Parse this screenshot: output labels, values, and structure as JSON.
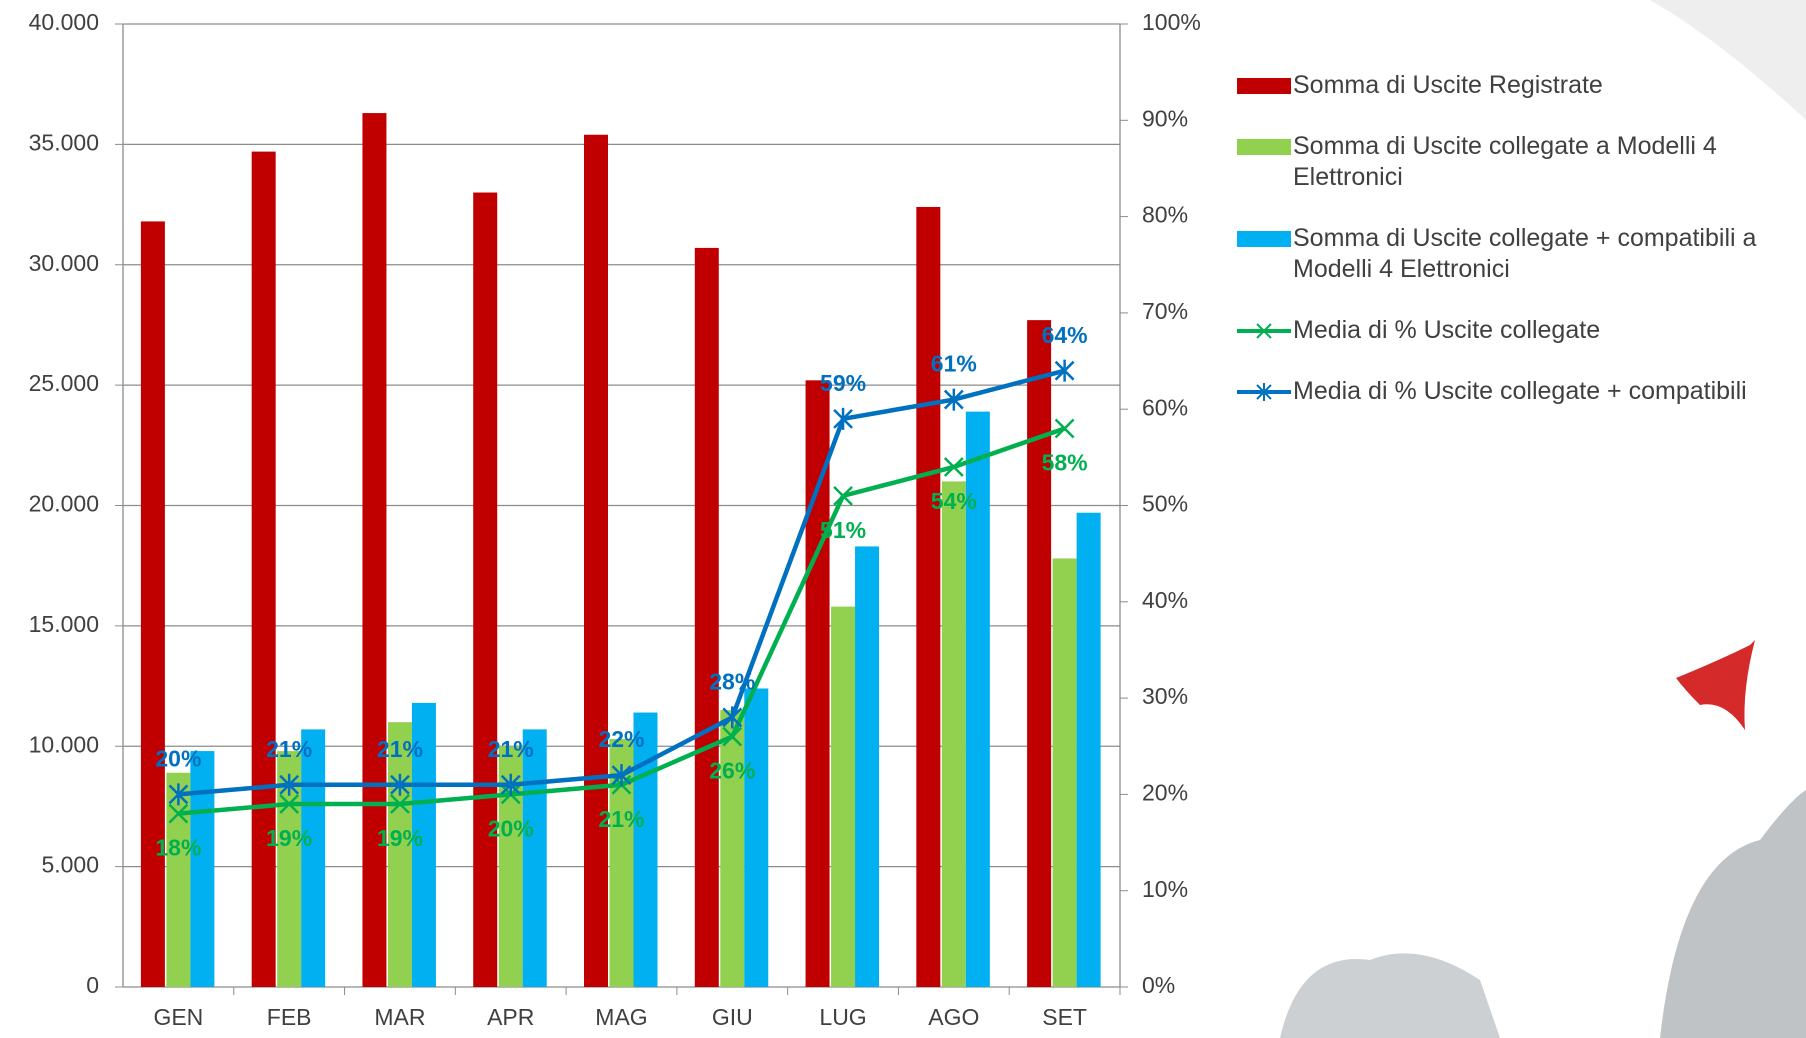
{
  "chart_data": {
    "type": "bar-line",
    "categories": [
      "GEN",
      "FEB",
      "MAR",
      "APR",
      "MAG",
      "GIU",
      "LUG",
      "AGO",
      "SET"
    ],
    "series": [
      {
        "name": "Somma di Uscite Registrate",
        "type": "bar",
        "color": "#c00000",
        "values": [
          31800,
          34700,
          36300,
          33000,
          35400,
          30700,
          25200,
          32400,
          27700
        ]
      },
      {
        "name": "Somma di Uscite collegate a Modelli 4 Elettronici",
        "type": "bar",
        "color": "#92d050",
        "values": [
          8900,
          9800,
          11000,
          10000,
          10300,
          11500,
          15800,
          21000,
          17800
        ]
      },
      {
        "name": "Somma di Uscite collegate + compatibili a Modelli 4 Elettronici",
        "type": "bar",
        "color": "#00b0f0",
        "values": [
          9800,
          10700,
          11800,
          10700,
          11400,
          12400,
          18300,
          23900,
          19700
        ]
      },
      {
        "name": "Media di % Uscite collegate",
        "type": "line",
        "axis": "y2",
        "marker": "x",
        "color": "#00b050",
        "values": [
          18,
          19,
          19,
          20,
          21,
          26,
          51,
          54,
          58
        ],
        "value_labels": [
          "18%",
          "19%",
          "19%",
          "20%",
          "21%",
          "26%",
          "51%",
          "54%",
          "58%"
        ]
      },
      {
        "name": "Media di % Uscite collegate + compatibili",
        "type": "line",
        "axis": "y2",
        "marker": "star",
        "color": "#0070c0",
        "values": [
          20,
          21,
          21,
          21,
          22,
          28,
          59,
          61,
          64
        ],
        "value_labels": [
          "20%",
          "21%",
          "21%",
          "21%",
          "22%",
          "28%",
          "59%",
          "61%",
          "64%"
        ]
      }
    ],
    "ylim": [
      0,
      40000
    ],
    "yticks": [
      {
        "value": 0,
        "label": "0"
      },
      {
        "value": 5000,
        "label": "5.000"
      },
      {
        "value": 10000,
        "label": "10.000"
      },
      {
        "value": 15000,
        "label": "15.000"
      },
      {
        "value": 20000,
        "label": "20.000"
      },
      {
        "value": 25000,
        "label": "25.000"
      },
      {
        "value": 30000,
        "label": "30.000"
      },
      {
        "value": 35000,
        "label": "35.000"
      },
      {
        "value": 40000,
        "label": "40.000"
      }
    ],
    "y2lim": [
      0,
      100
    ],
    "y2ticks": [
      {
        "value": 0,
        "label": "0%"
      },
      {
        "value": 10,
        "label": "10%"
      },
      {
        "value": 20,
        "label": "20%"
      },
      {
        "value": 30,
        "label": "30%"
      },
      {
        "value": 40,
        "label": "40%"
      },
      {
        "value": 50,
        "label": "50%"
      },
      {
        "value": 60,
        "label": "60%"
      },
      {
        "value": 70,
        "label": "70%"
      },
      {
        "value": 80,
        "label": "80%"
      },
      {
        "value": 90,
        "label": "90%"
      },
      {
        "value": 100,
        "label": "100%"
      }
    ],
    "grid": true,
    "legend": "right"
  }
}
